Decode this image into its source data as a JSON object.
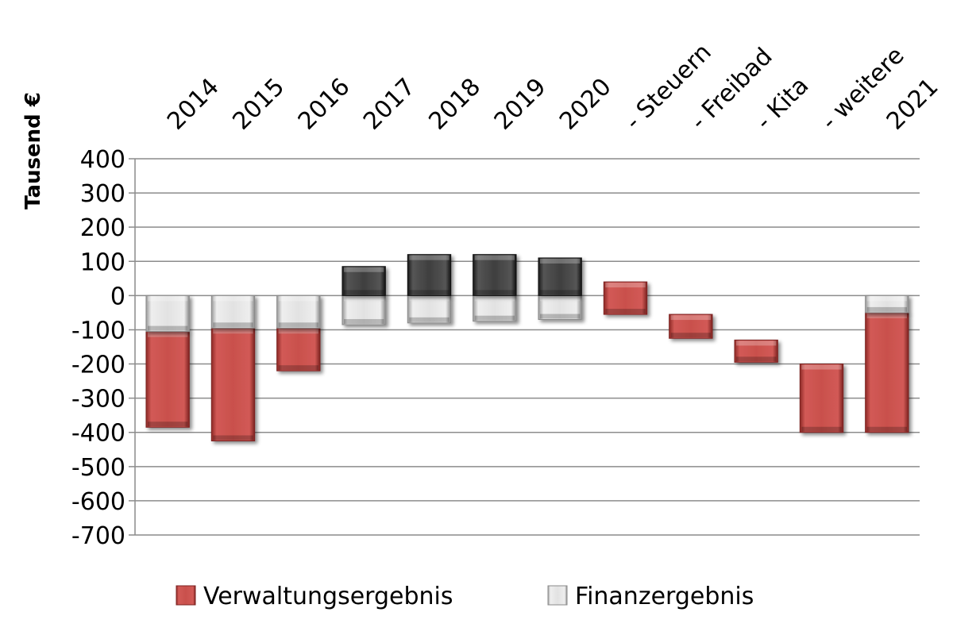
{
  "chart_data": {
    "type": "bar",
    "stacked": "waterfall",
    "categories": [
      "2014",
      "2015",
      "2016",
      "2017",
      "2018",
      "2019",
      "2020",
      "- Steuern",
      "- Freibad",
      "- Kita",
      "- weitere",
      "2021"
    ],
    "ylabel": "Tausend €",
    "ylim": [
      -700,
      400
    ],
    "yticks": [
      400,
      300,
      200,
      100,
      0,
      -100,
      -200,
      -300,
      -400,
      -500,
      -600,
      -700
    ],
    "grid": true,
    "legend_position": "bottom",
    "series": [
      {
        "name": "Verwaltungsergebnis",
        "color": "#c0504d",
        "segments": [
          [
            -105,
            -385
          ],
          [
            -95,
            -425
          ],
          [
            -95,
            -220
          ],
          null,
          null,
          null,
          null,
          [
            40,
            -55
          ],
          [
            -55,
            -125
          ],
          [
            -130,
            -195
          ],
          [
            -200,
            -400
          ],
          [
            -50,
            -400
          ]
        ]
      },
      {
        "name": "Finanzergebnis",
        "color": "#d9d9d9",
        "segments": [
          [
            0,
            -105
          ],
          [
            0,
            -95
          ],
          [
            0,
            -95
          ],
          [
            0,
            -85
          ],
          [
            0,
            -80
          ],
          [
            0,
            -75
          ],
          [
            0,
            -70
          ],
          null,
          null,
          null,
          null,
          [
            0,
            -50
          ]
        ]
      },
      {
        "color": "#404040",
        "segments": [
          null,
          null,
          null,
          [
            0,
            85
          ],
          [
            0,
            120
          ],
          [
            0,
            120
          ],
          [
            0,
            110
          ],
          null,
          null,
          null,
          null,
          null
        ]
      }
    ]
  }
}
